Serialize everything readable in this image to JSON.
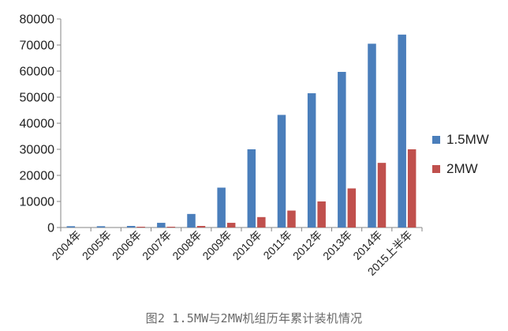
{
  "caption": "图2 1.5MW与2MW机组历年累计装机情况",
  "chart_data": {
    "type": "bar",
    "categories": [
      "2004年",
      "2005年",
      "2006年",
      "2007年",
      "2008年",
      "2009年",
      "2010年",
      "2011年",
      "2012年",
      "2013年",
      "2014年",
      "2015上半年"
    ],
    "series": [
      {
        "name": "1.5MW",
        "color": "#4a7ebb",
        "values": [
          500,
          500,
          600,
          1800,
          5200,
          15300,
          30000,
          43200,
          51500,
          59700,
          70500,
          74000
        ]
      },
      {
        "name": "2MW",
        "color": "#c0504d",
        "values": [
          0,
          0,
          300,
          300,
          600,
          1800,
          4000,
          6500,
          10000,
          15000,
          24800,
          30000
        ]
      }
    ],
    "ylim": [
      0,
      80000
    ],
    "yticks": [
      0,
      10000,
      20000,
      30000,
      40000,
      50000,
      60000,
      70000,
      80000
    ],
    "grid": false,
    "legend_position": "right",
    "title": "",
    "xlabel": "",
    "ylabel": ""
  }
}
